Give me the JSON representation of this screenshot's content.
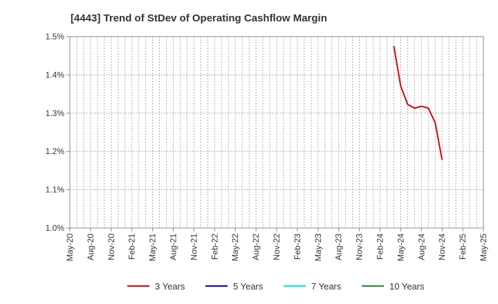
{
  "chart_data": {
    "type": "line",
    "title": "[4443]  Trend of StDev of Operating Cashflow Margin",
    "xlabel": "",
    "ylabel": "",
    "y_unit": "%",
    "ylim": [
      1.0,
      1.5
    ],
    "y_ticks": [
      "1.0%",
      "1.1%",
      "1.2%",
      "1.3%",
      "1.4%",
      "1.5%"
    ],
    "x_range": [
      "2020-05",
      "2025-05"
    ],
    "x_ticks": [
      "May-20",
      "Aug-20",
      "Nov-20",
      "Feb-21",
      "May-21",
      "Aug-21",
      "Nov-21",
      "Feb-22",
      "May-22",
      "Aug-22",
      "Nov-22",
      "Feb-23",
      "May-23",
      "Aug-23",
      "Nov-23",
      "Feb-24",
      "May-24",
      "Aug-24",
      "Nov-24",
      "Feb-25",
      "May-25"
    ],
    "grid": true,
    "legend_position": "bottom",
    "series": [
      {
        "name": "3 Years",
        "color": "#dd0000",
        "x": [
          "2024-04",
          "2024-05",
          "2024-06",
          "2024-07",
          "2024-08",
          "2024-09",
          "2024-10",
          "2024-11"
        ],
        "y": [
          1.475,
          1.37,
          1.323,
          1.313,
          1.318,
          1.313,
          1.275,
          1.178
        ]
      },
      {
        "name": "5 Years",
        "color": "#0000cc",
        "x": [],
        "y": []
      },
      {
        "name": "7 Years",
        "color": "#00e5ee",
        "x": [],
        "y": []
      },
      {
        "name": "10 Years",
        "color": "#228b22",
        "x": [],
        "y": []
      }
    ]
  }
}
